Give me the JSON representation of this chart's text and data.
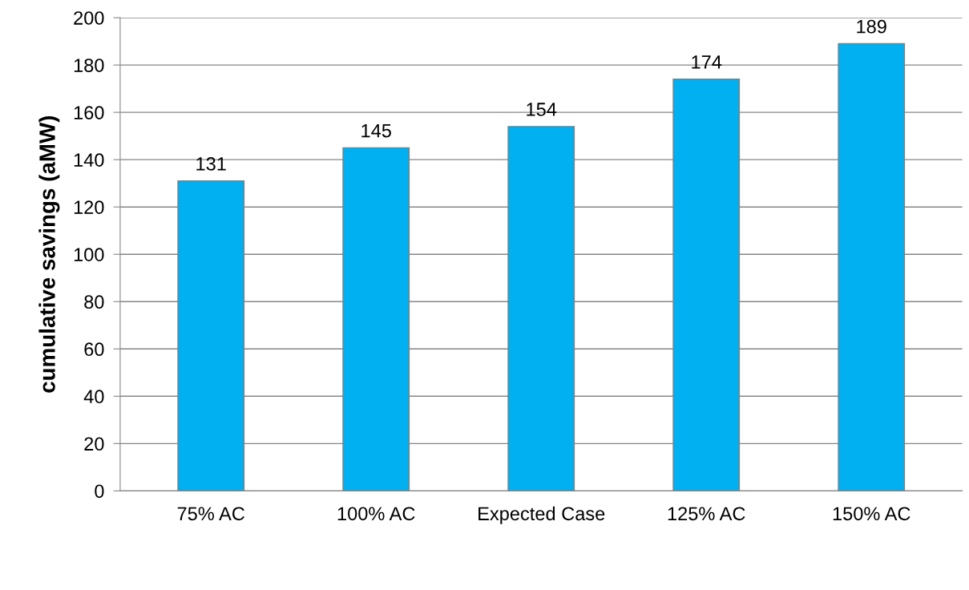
{
  "chart_data": {
    "type": "bar",
    "ylabel": "cumulative savings (aMW)",
    "categories": [
      "75% AC",
      "100% AC",
      "Expected Case",
      "125% AC",
      "150% AC"
    ],
    "values": [
      131,
      145,
      154,
      174,
      189
    ],
    "color": "#00b0f0",
    "ylim": [
      0,
      200
    ],
    "yticks": [
      0,
      20,
      40,
      60,
      80,
      100,
      120,
      140,
      160,
      180,
      200
    ],
    "grid": "y",
    "data_labels": true
  }
}
